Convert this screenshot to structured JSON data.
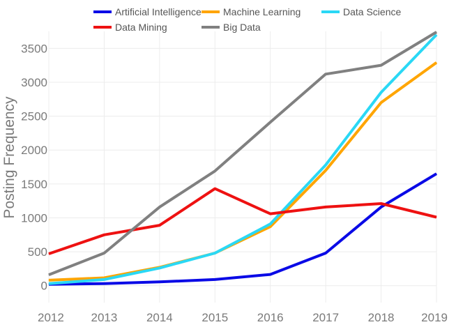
{
  "chart_data": {
    "type": "line",
    "title": "",
    "xlabel": "",
    "ylabel": "Posting Frequency",
    "x": [
      2012,
      2013,
      2014,
      2015,
      2016,
      2017,
      2018,
      2019
    ],
    "xlim": [
      2012,
      2019
    ],
    "ylim": [
      -250,
      3750
    ],
    "yticks": [
      0,
      500,
      1000,
      1500,
      2000,
      2500,
      3000,
      3500
    ],
    "grid": true,
    "legend_position": "top",
    "series": [
      {
        "name": "Artificial Intelligence",
        "color": "#0a0ae6",
        "values": [
          20,
          30,
          55,
          90,
          165,
          480,
          1160,
          1650
        ]
      },
      {
        "name": "Machine Learning",
        "color": "#ffa500",
        "values": [
          80,
          115,
          270,
          480,
          870,
          1700,
          2700,
          3290
        ]
      },
      {
        "name": "Data Science",
        "color": "#2ad8f5",
        "values": [
          30,
          90,
          260,
          480,
          910,
          1780,
          2850,
          3700
        ]
      },
      {
        "name": "Data Mining",
        "color": "#ee1111",
        "values": [
          470,
          750,
          890,
          1430,
          1060,
          1160,
          1210,
          1010
        ]
      },
      {
        "name": "Big Data",
        "color": "#808080",
        "values": [
          160,
          480,
          1160,
          1690,
          2410,
          3120,
          3250,
          3740
        ]
      }
    ]
  }
}
